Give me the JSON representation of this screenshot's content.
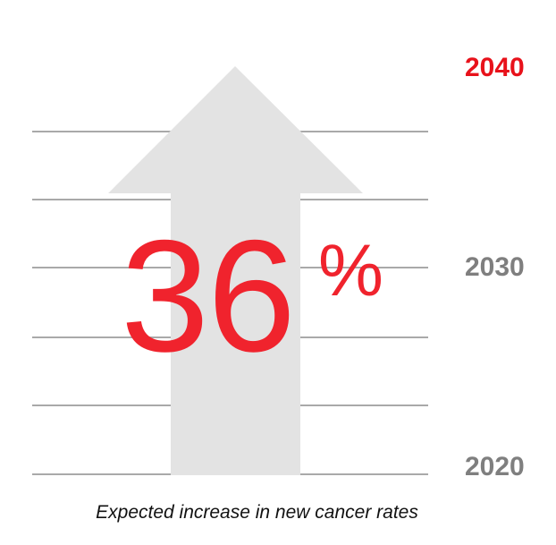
{
  "years": {
    "top": "2040",
    "middle": "2030",
    "bottom": "2020"
  },
  "increase": {
    "value": "36",
    "unit": "%"
  },
  "caption": "Expected increase in new cancer rates",
  "colors": {
    "accent_red": "#f0232d",
    "year_gray": "#7f7f7f",
    "arrow_fill": "#e3e3e3",
    "gridline": "#a9a9a9"
  },
  "icons": {
    "arrow": "up-arrow-icon"
  }
}
